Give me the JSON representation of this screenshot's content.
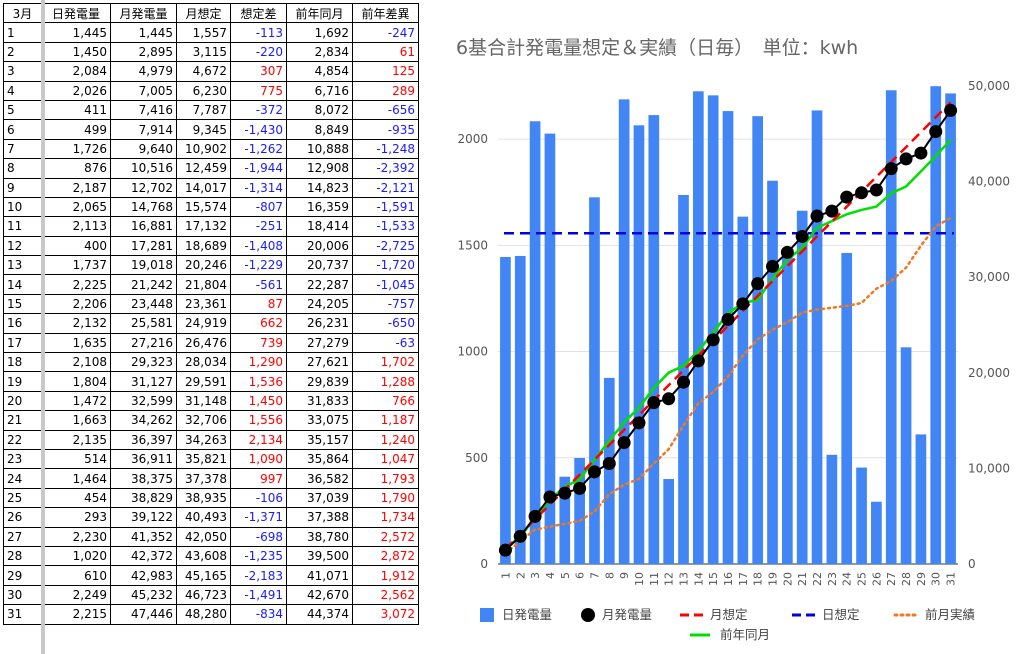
{
  "table": {
    "headers": [
      "3月",
      "日発電量",
      "月発電量",
      "月想定",
      "想定差",
      "前年同月",
      "前年差異"
    ],
    "rows": [
      [
        "1",
        "1,445",
        "1,445",
        "1,557",
        "-113",
        "1,692",
        "-247"
      ],
      [
        "2",
        "1,450",
        "2,895",
        "3,115",
        "-220",
        "2,834",
        "61"
      ],
      [
        "3",
        "2,084",
        "4,979",
        "4,672",
        "307",
        "4,854",
        "125"
      ],
      [
        "4",
        "2,026",
        "7,005",
        "6,230",
        "775",
        "6,716",
        "289"
      ],
      [
        "5",
        "411",
        "7,416",
        "7,787",
        "-372",
        "8,072",
        "-656"
      ],
      [
        "6",
        "499",
        "7,914",
        "9,345",
        "-1,430",
        "8,849",
        "-935"
      ],
      [
        "7",
        "1,726",
        "9,640",
        "10,902",
        "-1,262",
        "10,888",
        "-1,248"
      ],
      [
        "8",
        "876",
        "10,516",
        "12,459",
        "-1,944",
        "12,908",
        "-2,392"
      ],
      [
        "9",
        "2,187",
        "12,702",
        "14,017",
        "-1,314",
        "14,823",
        "-2,121"
      ],
      [
        "10",
        "2,065",
        "14,768",
        "15,574",
        "-807",
        "16,359",
        "-1,591"
      ],
      [
        "11",
        "2,113",
        "16,881",
        "17,132",
        "-251",
        "18,414",
        "-1,533"
      ],
      [
        "12",
        "400",
        "17,281",
        "18,689",
        "-1,408",
        "20,006",
        "-2,725"
      ],
      [
        "13",
        "1,737",
        "19,018",
        "20,246",
        "-1,229",
        "20,737",
        "-1,720"
      ],
      [
        "14",
        "2,225",
        "21,242",
        "21,804",
        "-561",
        "22,287",
        "-1,045"
      ],
      [
        "15",
        "2,206",
        "23,448",
        "23,361",
        "87",
        "24,205",
        "-757"
      ],
      [
        "16",
        "2,132",
        "25,581",
        "24,919",
        "662",
        "26,231",
        "-650"
      ],
      [
        "17",
        "1,635",
        "27,216",
        "26,476",
        "739",
        "27,279",
        "-63"
      ],
      [
        "18",
        "2,108",
        "29,323",
        "28,034",
        "1,290",
        "27,621",
        "1,702"
      ],
      [
        "19",
        "1,804",
        "31,127",
        "29,591",
        "1,536",
        "29,839",
        "1,288"
      ],
      [
        "20",
        "1,472",
        "32,599",
        "31,148",
        "1,450",
        "31,833",
        "766"
      ],
      [
        "21",
        "1,663",
        "34,262",
        "32,706",
        "1,556",
        "33,075",
        "1,187"
      ],
      [
        "22",
        "2,135",
        "36,397",
        "34,263",
        "2,134",
        "35,157",
        "1,240"
      ],
      [
        "23",
        "514",
        "36,911",
        "35,821",
        "1,090",
        "35,864",
        "1,047"
      ],
      [
        "24",
        "1,464",
        "38,375",
        "37,378",
        "997",
        "36,582",
        "1,793"
      ],
      [
        "25",
        "454",
        "38,829",
        "38,935",
        "-106",
        "37,039",
        "1,790"
      ],
      [
        "26",
        "293",
        "39,122",
        "40,493",
        "-1,371",
        "37,388",
        "1,734"
      ],
      [
        "27",
        "2,230",
        "41,352",
        "42,050",
        "-698",
        "38,780",
        "2,572"
      ],
      [
        "28",
        "1,020",
        "42,372",
        "43,608",
        "-1,235",
        "39,500",
        "2,872"
      ],
      [
        "29",
        "610",
        "42,983",
        "45,165",
        "-2,183",
        "41,071",
        "1,912"
      ],
      [
        "30",
        "2,249",
        "45,232",
        "46,723",
        "-1,491",
        "42,670",
        "2,562"
      ],
      [
        "31",
        "2,215",
        "47,446",
        "48,280",
        "-834",
        "44,374",
        "3,072"
      ]
    ]
  },
  "chart_data": {
    "type": "bar",
    "title": "6基合計発電量想定＆実績（日毎）　単位：kwh",
    "categories": [
      "1",
      "2",
      "3",
      "4",
      "5",
      "6",
      "7",
      "8",
      "9",
      "10",
      "11",
      "12",
      "13",
      "14",
      "15",
      "16",
      "17",
      "18",
      "19",
      "20",
      "21",
      "22",
      "23",
      "24",
      "25",
      "26",
      "27",
      "28",
      "29",
      "30",
      "31"
    ],
    "left_axis": {
      "min": 0,
      "max": 2250,
      "ticks": [
        "0",
        "500",
        "1000",
        "1500",
        "2000"
      ]
    },
    "right_axis": {
      "min": 0,
      "max": 50000,
      "ticks": [
        "0",
        "10,000",
        "20,000",
        "30,000",
        "40,000",
        "50,000"
      ]
    },
    "series": [
      {
        "name": "日発電量",
        "type": "bar",
        "axis": "left",
        "color": "#4285f4",
        "values": [
          1445,
          1450,
          2084,
          2026,
          411,
          499,
          1726,
          876,
          2187,
          2065,
          2113,
          400,
          1737,
          2225,
          2206,
          2132,
          1635,
          2108,
          1804,
          1472,
          1663,
          2135,
          514,
          1464,
          454,
          293,
          2230,
          1020,
          610,
          2249,
          2215
        ]
      },
      {
        "name": "月発電量",
        "type": "line-marker",
        "axis": "right",
        "color": "#000000",
        "values": [
          1445,
          2895,
          4979,
          7005,
          7416,
          7914,
          9640,
          10516,
          12702,
          14768,
          16881,
          17281,
          19018,
          21242,
          23448,
          25581,
          27216,
          29323,
          31127,
          32599,
          34262,
          36397,
          36911,
          38375,
          38829,
          39122,
          41352,
          42372,
          42983,
          45232,
          47446
        ]
      },
      {
        "name": "月想定",
        "type": "dashed-line",
        "axis": "right",
        "color": "#ff0000",
        "values": [
          1557,
          3115,
          4672,
          6230,
          7787,
          9345,
          10902,
          12459,
          14017,
          15574,
          17132,
          18689,
          20246,
          21804,
          23361,
          24919,
          26476,
          28034,
          29591,
          31148,
          32706,
          34263,
          35821,
          37378,
          38935,
          40493,
          42050,
          43608,
          45165,
          46723,
          48280
        ]
      },
      {
        "name": "日想定",
        "type": "dashed-line",
        "axis": "left",
        "color": "#0000dd",
        "value": 1557
      },
      {
        "name": "前月実績",
        "type": "dotted-line",
        "axis": "right",
        "color": "#f07820",
        "values": [
          1100,
          2400,
          3600,
          3900,
          4200,
          4500,
          5500,
          7300,
          8300,
          8900,
          10500,
          12000,
          14500,
          16800,
          18000,
          19600,
          21800,
          23500,
          24500,
          25300,
          26300,
          26600,
          26800,
          27000,
          27300,
          28800,
          29600,
          31000,
          33300,
          35300,
          36200
        ]
      },
      {
        "name": "前年同月",
        "type": "line",
        "axis": "right",
        "color": "#00e000",
        "values": [
          1692,
          2834,
          4854,
          6716,
          8072,
          8849,
          10888,
          12908,
          14823,
          16359,
          18414,
          20006,
          20737,
          22287,
          24205,
          26231,
          27279,
          27621,
          29839,
          31833,
          33075,
          35157,
          35864,
          36582,
          37039,
          37388,
          38780,
          39500,
          41071,
          42670,
          44374
        ]
      }
    ],
    "legend": [
      "日発電量",
      "月発電量",
      "月想定",
      "日想定",
      "前月実績",
      "前年同月"
    ],
    "grid": true,
    "legend_position": "bottom"
  }
}
